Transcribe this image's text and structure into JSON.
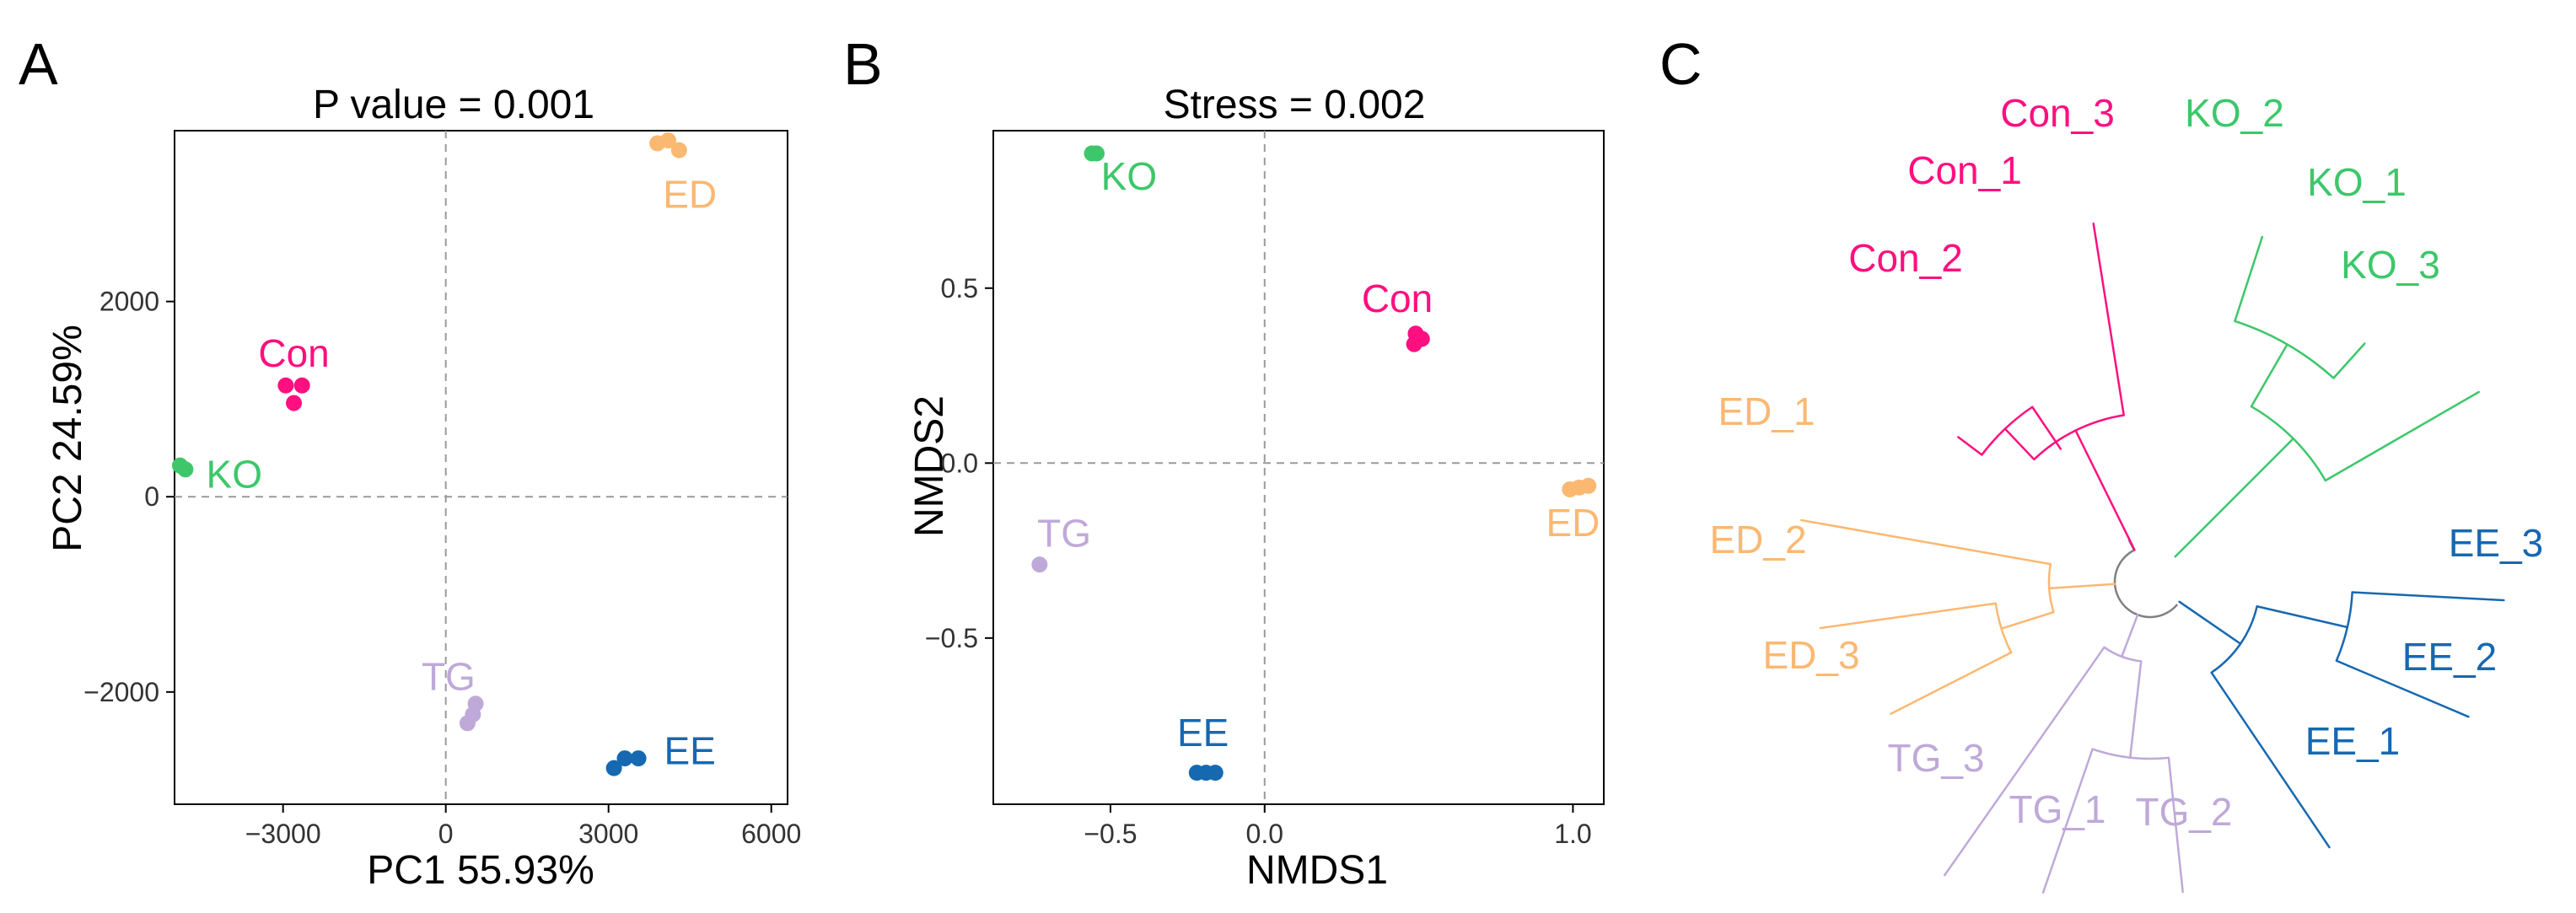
{
  "colors": {
    "con": "#ff0f7f",
    "ko": "#3dc76a",
    "ed": "#fbb871",
    "tg": "#bfa9d9",
    "ee": "#1668b1",
    "root": "#808080",
    "axis": "#000000",
    "tick_text": "#333333",
    "grid": "#9a9a9a"
  },
  "chart_data": [
    {
      "panel": "A",
      "type": "scatter",
      "title": "P value = 0.001",
      "xlabel": "PC1 55.93%",
      "ylabel": "PC2 24.59%",
      "xlim": [
        -5000,
        6300
      ],
      "ylim": [
        -3150,
        3750
      ],
      "xticks": [
        -3000,
        0,
        3000,
        6000
      ],
      "xtick_labels": [
        "−3000",
        "0",
        "3000",
        "6000"
      ],
      "yticks": [
        -2000,
        0,
        2000
      ],
      "ytick_labels": [
        "−2000",
        "0",
        "2000"
      ],
      "reference_lines": {
        "x": 0,
        "y": 0
      },
      "series": [
        {
          "name": "Con",
          "color_key": "con",
          "points": [
            [
              -2950,
              1140
            ],
            [
              -2650,
              1140
            ],
            [
              -2800,
              960
            ]
          ],
          "label": {
            "x": -2800,
            "y": 1470
          }
        },
        {
          "name": "KO",
          "color_key": "ko",
          "points": [
            [
              -4900,
              320
            ],
            [
              -4800,
              280
            ]
          ],
          "label": {
            "x": -3900,
            "y": 230
          }
        },
        {
          "name": "ED",
          "color_key": "ed",
          "points": [
            [
              3900,
              3620
            ],
            [
              4100,
              3650
            ],
            [
              4300,
              3550
            ]
          ],
          "label": {
            "x": 4500,
            "y": 3100
          }
        },
        {
          "name": "TG",
          "color_key": "tg",
          "points": [
            [
              400,
              -2320
            ],
            [
              500,
              -2230
            ],
            [
              550,
              -2120
            ]
          ],
          "label": {
            "x": 50,
            "y": -1840
          }
        },
        {
          "name": "EE",
          "color_key": "ee",
          "points": [
            [
              3100,
              -2780
            ],
            [
              3300,
              -2680
            ],
            [
              3550,
              -2680
            ]
          ],
          "label": {
            "x": 4500,
            "y": -2600
          }
        }
      ]
    },
    {
      "panel": "B",
      "type": "scatter",
      "title": "Stress = 0.002",
      "xlabel": "NMDS1",
      "ylabel": "NMDS2",
      "xlim": [
        -0.88,
        1.1
      ],
      "ylim": [
        -0.975,
        0.95
      ],
      "xticks": [
        -0.5,
        0,
        1
      ],
      "xtick_labels": [
        "−0.5",
        "0.0",
        "1.0"
      ],
      "yticks": [
        -0.5,
        0,
        0.5
      ],
      "ytick_labels": [
        "−0.5",
        "0.0",
        "0.5"
      ],
      "reference_lines": {
        "x": 0,
        "y": 0
      },
      "series": [
        {
          "name": "KO",
          "color_key": "ko",
          "points": [
            [
              -0.56,
              0.885
            ],
            [
              -0.545,
              0.885
            ]
          ],
          "label": {
            "x": -0.44,
            "y": 0.82
          }
        },
        {
          "name": "Con",
          "color_key": "con",
          "points": [
            [
              0.49,
              0.37
            ],
            [
              0.51,
              0.355
            ],
            [
              0.485,
              0.34
            ]
          ],
          "label": {
            "x": 0.43,
            "y": 0.47
          }
        },
        {
          "name": "ED",
          "color_key": "ed",
          "points": [
            [
              0.99,
              -0.075
            ],
            [
              1.02,
              -0.07
            ],
            [
              1.05,
              -0.065
            ]
          ],
          "label": {
            "x": 1.0,
            "y": -0.17
          }
        },
        {
          "name": "TG",
          "color_key": "tg",
          "points": [
            [
              -0.73,
              -0.29
            ]
          ],
          "label": {
            "x": -0.65,
            "y": -0.2
          }
        },
        {
          "name": "EE",
          "color_key": "ee",
          "points": [
            [
              -0.22,
              -0.885
            ],
            [
              -0.19,
              -0.885
            ],
            [
              -0.16,
              -0.885
            ]
          ],
          "label": {
            "x": -0.2,
            "y": -0.77
          }
        }
      ]
    },
    {
      "panel": "C",
      "type": "dendrogram",
      "layout": "circular",
      "leaves": [
        {
          "name": "Con_1",
          "group": "Con",
          "color_key": "con"
        },
        {
          "name": "Con_2",
          "group": "Con",
          "color_key": "con"
        },
        {
          "name": "Con_3",
          "group": "Con",
          "color_key": "con"
        },
        {
          "name": "KO_1",
          "group": "KO",
          "color_key": "ko"
        },
        {
          "name": "KO_2",
          "group": "KO",
          "color_key": "ko"
        },
        {
          "name": "KO_3",
          "group": "KO",
          "color_key": "ko"
        },
        {
          "name": "ED_1",
          "group": "ED",
          "color_key": "ed"
        },
        {
          "name": "ED_2",
          "group": "ED",
          "color_key": "ed"
        },
        {
          "name": "ED_3",
          "group": "ED",
          "color_key": "ed"
        },
        {
          "name": "TG_1",
          "group": "TG",
          "color_key": "tg"
        },
        {
          "name": "TG_2",
          "group": "TG",
          "color_key": "tg"
        },
        {
          "name": "TG_3",
          "group": "TG",
          "color_key": "tg"
        },
        {
          "name": "EE_1",
          "group": "EE",
          "color_key": "ee"
        },
        {
          "name": "EE_2",
          "group": "EE",
          "color_key": "ee"
        },
        {
          "name": "EE_3",
          "group": "EE",
          "color_key": "ee"
        }
      ],
      "clusters": [
        [
          "Con_2",
          "Con_1",
          "Con_3"
        ],
        [
          "KO_2",
          "KO_1",
          "KO_3"
        ],
        [
          "ED_1",
          "ED_2",
          "ED_3"
        ],
        [
          "TG_3",
          "TG_1",
          "TG_2"
        ],
        [
          "EE_1",
          "EE_2",
          "EE_3"
        ]
      ]
    }
  ],
  "panel_labels": {
    "a": "A",
    "b": "B",
    "c": "C"
  }
}
